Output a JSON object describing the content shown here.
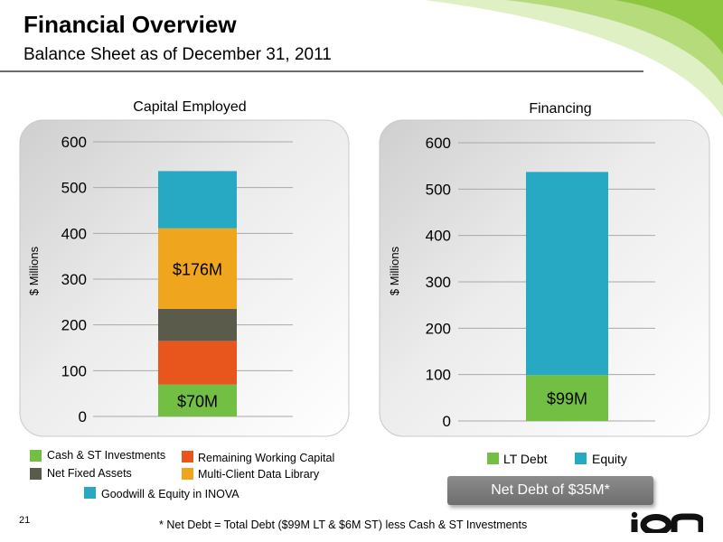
{
  "header": {
    "title": "Financial Overview",
    "subtitle": "Balance Sheet as of December 31, 2011"
  },
  "colors": {
    "cash": "#72bf44",
    "working_capital": "#e8561e",
    "fixed_assets": "#5b5b4b",
    "data_library": "#f0a51f",
    "goodwill": "#27a8c3",
    "lt_debt": "#72bf44",
    "equity": "#27a8c3",
    "panel": "#e6e6e6",
    "accent_green": "#8dc63f"
  },
  "chart_data": [
    {
      "type": "bar",
      "stacked": true,
      "title": "Capital Employed",
      "ylabel": "$ Millions",
      "ylim": [
        0,
        600
      ],
      "yticks": [
        "0",
        "100",
        "200",
        "300",
        "400",
        "500",
        "600"
      ],
      "grid": true,
      "series": [
        {
          "name": "Cash & ST Investments",
          "values": [
            70
          ],
          "data_label": "$70M"
        },
        {
          "name": "Remaining Working Capital",
          "values": [
            95
          ]
        },
        {
          "name": "Net Fixed Assets",
          "values": [
            70
          ]
        },
        {
          "name": "Multi-Client Data Library",
          "values": [
            176
          ],
          "data_label": "$176M"
        },
        {
          "name": "Goodwill & Equity in INOVA",
          "values": [
            125
          ]
        }
      ]
    },
    {
      "type": "bar",
      "stacked": true,
      "title": "Financing",
      "ylabel": "$ Millions",
      "ylim": [
        0,
        600
      ],
      "yticks": [
        "0",
        "100",
        "200",
        "300",
        "400",
        "500",
        "600"
      ],
      "grid": true,
      "series": [
        {
          "name": "LT Debt",
          "values": [
            99
          ],
          "data_label": "$99M"
        },
        {
          "name": "Equity",
          "values": [
            438
          ]
        }
      ]
    }
  ],
  "callout": {
    "net_debt": "Net Debt of $35M*"
  },
  "footer": {
    "footnote": "* Net Debt = Total Debt ($99M LT & $6M ST) less Cash & ST Investments",
    "page_number": "21",
    "logo_text": "ION"
  }
}
